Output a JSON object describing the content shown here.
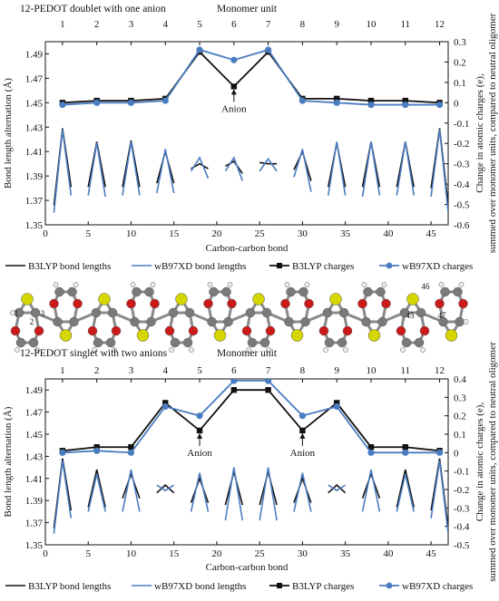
{
  "chart_data": [
    {
      "type": "line",
      "title": "12-PEDOT doublet with one anion",
      "top_axis_label": "Monomer unit",
      "top_ticks": [
        "1",
        "2",
        "3",
        "4",
        "5",
        "6",
        "7",
        "8",
        "9",
        "10",
        "11",
        "12"
      ],
      "xlabel": "Carbon-carbon bond",
      "xlim": [
        0,
        47
      ],
      "x_ticks": [
        0,
        5,
        10,
        15,
        20,
        25,
        30,
        35,
        40,
        45
      ],
      "ylabel_left": "Bond length alternation (Å)",
      "ylim_left": [
        1.35,
        1.5
      ],
      "y_ticks_left": [
        "1.35",
        "1.37",
        "1.39",
        "1.41",
        "1.43",
        "1.45",
        "1.47",
        "1.49"
      ],
      "ylabel_right": "Change in atomic charges (e), summed over monomer units, compared to neutral oligomer",
      "ylim_right": [
        -0.6,
        0.3
      ],
      "y_ticks_right": [
        "-0.6",
        "-0.5",
        "-0.4",
        "-0.3",
        "-0.2",
        "-0.1",
        "0",
        "0.1",
        "0.2",
        "0.3"
      ],
      "series": [
        {
          "name": "B3LYP bond lengths",
          "axis": "left",
          "style": "bond",
          "color": "#111111",
          "x": [
            1,
            2,
            3,
            4,
            5,
            6,
            7,
            8,
            9,
            10,
            11,
            12,
            13,
            14,
            15,
            16,
            17,
            18,
            19,
            20,
            21,
            22,
            23,
            24,
            25,
            26,
            27,
            28,
            29,
            30,
            31,
            32,
            33,
            34,
            35,
            36,
            37,
            38,
            39,
            40,
            41,
            42,
            43,
            44,
            45,
            46,
            47
          ],
          "y": [
            1.366,
            1.429,
            1.381,
            1.38,
            1.381,
            1.418,
            1.381,
            1.38,
            1.381,
            1.419,
            1.381,
            1.38,
            1.384,
            1.41,
            1.384,
            1.397,
            1.396,
            1.4,
            1.396,
            1.397,
            1.398,
            1.402,
            1.392,
            1.4,
            1.401,
            1.4,
            1.4,
            1.397,
            1.395,
            1.41,
            1.386,
            1.381,
            1.381,
            1.417,
            1.381,
            1.38,
            1.381,
            1.418,
            1.381,
            1.38,
            1.381,
            1.418,
            1.381,
            1.38,
            1.38,
            1.429,
            1.366
          ]
        },
        {
          "name": "wB97XD bond lengths",
          "axis": "left",
          "style": "bond",
          "color": "#4a7cc0",
          "x": [
            1,
            2,
            3,
            4,
            5,
            6,
            7,
            8,
            9,
            10,
            11,
            12,
            13,
            14,
            15,
            16,
            17,
            18,
            19,
            20,
            21,
            22,
            23,
            24,
            25,
            26,
            27,
            28,
            29,
            30,
            31,
            32,
            33,
            34,
            35,
            36,
            37,
            38,
            39,
            40,
            41,
            42,
            43,
            44,
            45,
            46,
            47
          ],
          "y": [
            1.36,
            1.428,
            1.374,
            1.373,
            1.374,
            1.417,
            1.373,
            1.372,
            1.374,
            1.418,
            1.374,
            1.373,
            1.376,
            1.412,
            1.376,
            1.388,
            1.394,
            1.405,
            1.388,
            1.388,
            1.394,
            1.405,
            1.386,
            1.392,
            1.394,
            1.404,
            1.394,
            1.387,
            1.389,
            1.412,
            1.377,
            1.373,
            1.374,
            1.418,
            1.374,
            1.372,
            1.373,
            1.418,
            1.374,
            1.373,
            1.374,
            1.418,
            1.374,
            1.373,
            1.373,
            1.428,
            1.36
          ]
        },
        {
          "name": "B3LYP charges",
          "axis": "right",
          "marker": "square",
          "color": "#111111",
          "x": [
            2,
            6,
            10,
            14,
            18,
            22,
            26,
            30,
            34,
            38,
            42,
            46
          ],
          "y": [
            0.0,
            0.01,
            0.01,
            0.02,
            0.25,
            0.08,
            0.25,
            0.02,
            0.02,
            0.01,
            0.01,
            0.0
          ]
        },
        {
          "name": "wB97XD charges",
          "axis": "right",
          "marker": "circle",
          "color": "#4a7cc0",
          "x": [
            2,
            6,
            10,
            14,
            18,
            22,
            26,
            30,
            34,
            38,
            42,
            46
          ],
          "y": [
            -0.01,
            0.0,
            0.0,
            0.01,
            0.26,
            0.21,
            0.26,
            0.01,
            0.0,
            -0.01,
            -0.01,
            -0.01
          ]
        }
      ],
      "annotations": [
        {
          "text": "Anion",
          "x": 22,
          "axis": "right",
          "y": 0.08
        }
      ],
      "grid": false
    },
    {
      "type": "line",
      "title": "12-PEDOT singlet with two anions",
      "top_axis_label": "Monomer unit",
      "top_ticks": [
        "1",
        "2",
        "3",
        "4",
        "5",
        "6",
        "7",
        "8",
        "9",
        "10",
        "11",
        "12"
      ],
      "xlabel": "Carbon-carbon bond",
      "xlim": [
        0,
        47
      ],
      "x_ticks": [
        0,
        5,
        10,
        15,
        20,
        25,
        30,
        35,
        40,
        45
      ],
      "ylabel_left": "Bond length alternation (Å)",
      "ylim_left": [
        1.35,
        1.5
      ],
      "y_ticks_left": [
        "1.35",
        "1.37",
        "1.39",
        "1.41",
        "1.43",
        "1.45",
        "1.47",
        "1.49"
      ],
      "ylabel_right": "Change in atomic charges (e), summed over monomer units, compared to neutral oligomer",
      "ylim_right": [
        -0.5,
        0.4
      ],
      "y_ticks_right": [
        "-0.5",
        "-0.4",
        "-0.3",
        "-0.2",
        "-0.1",
        "0",
        "0.1",
        "0.2",
        "0.3",
        "0.4"
      ],
      "series": [
        {
          "name": "B3LYP bond lengths",
          "axis": "left",
          "style": "bond",
          "color": "#111111",
          "x": [
            1,
            2,
            3,
            4,
            5,
            6,
            7,
            8,
            9,
            10,
            11,
            12,
            13,
            14,
            15,
            16,
            17,
            18,
            19,
            20,
            21,
            22,
            23,
            24,
            25,
            26,
            27,
            28,
            29,
            30,
            31,
            32,
            33,
            34,
            35,
            36,
            37,
            38,
            39,
            40,
            41,
            42,
            43,
            44,
            45,
            46,
            47
          ],
          "y": [
            1.365,
            1.428,
            1.381,
            1.38,
            1.384,
            1.418,
            1.384,
            1.39,
            1.392,
            1.414,
            1.392,
            1.395,
            1.397,
            1.404,
            1.397,
            1.403,
            1.388,
            1.41,
            1.388,
            1.395,
            1.386,
            1.416,
            1.386,
            1.39,
            1.386,
            1.416,
            1.386,
            1.395,
            1.388,
            1.41,
            1.388,
            1.403,
            1.397,
            1.404,
            1.397,
            1.395,
            1.392,
            1.414,
            1.392,
            1.39,
            1.384,
            1.418,
            1.384,
            1.38,
            1.381,
            1.428,
            1.365
          ]
        },
        {
          "name": "wB97XD bond lengths",
          "axis": "left",
          "style": "bond",
          "color": "#4a7cc0",
          "x": [
            1,
            2,
            3,
            4,
            5,
            6,
            7,
            8,
            9,
            10,
            11,
            12,
            13,
            14,
            15,
            16,
            17,
            18,
            19,
            20,
            21,
            22,
            23,
            24,
            25,
            26,
            27,
            28,
            29,
            30,
            31,
            32,
            33,
            34,
            35,
            36,
            37,
            38,
            39,
            40,
            41,
            42,
            43,
            44,
            45,
            46,
            47
          ],
          "y": [
            1.36,
            1.426,
            1.374,
            1.377,
            1.38,
            1.414,
            1.38,
            1.377,
            1.38,
            1.418,
            1.38,
            1.4,
            1.404,
            1.399,
            1.404,
            1.412,
            1.38,
            1.415,
            1.38,
            1.418,
            1.372,
            1.42,
            1.372,
            1.415,
            1.372,
            1.42,
            1.372,
            1.418,
            1.38,
            1.415,
            1.38,
            1.412,
            1.404,
            1.399,
            1.404,
            1.4,
            1.38,
            1.418,
            1.38,
            1.377,
            1.38,
            1.414,
            1.38,
            1.377,
            1.374,
            1.426,
            1.36
          ]
        },
        {
          "name": "B3LYP charges",
          "axis": "right",
          "marker": "square",
          "color": "#111111",
          "x": [
            2,
            6,
            10,
            14,
            18,
            22,
            26,
            30,
            34,
            38,
            42,
            46
          ],
          "y": [
            0.01,
            0.03,
            0.03,
            0.27,
            0.12,
            0.34,
            0.34,
            0.12,
            0.27,
            0.03,
            0.03,
            0.01
          ]
        },
        {
          "name": "wB97XD charges",
          "axis": "right",
          "marker": "circle",
          "color": "#4a7cc0",
          "x": [
            2,
            6,
            10,
            14,
            18,
            22,
            26,
            30,
            34,
            38,
            42,
            46
          ],
          "y": [
            0.0,
            0.01,
            0.0,
            0.25,
            0.2,
            0.39,
            0.39,
            0.2,
            0.25,
            0.0,
            0.0,
            0.0
          ]
        }
      ],
      "annotations": [
        {
          "text": "Anion",
          "x": 18,
          "axis": "right",
          "y": 0.12
        },
        {
          "text": "Anion",
          "x": 30,
          "axis": "right",
          "y": 0.12
        }
      ],
      "grid": false
    }
  ],
  "molecule": {
    "atom_labels": [
      "1",
      "2",
      "3",
      "46",
      "45",
      "47"
    ],
    "colors": {
      "carbon": "#7a7a7a",
      "oxygen": "#cc1a1a",
      "sulfur": "#d6d600",
      "hydrogen": "#eeeeee"
    }
  }
}
